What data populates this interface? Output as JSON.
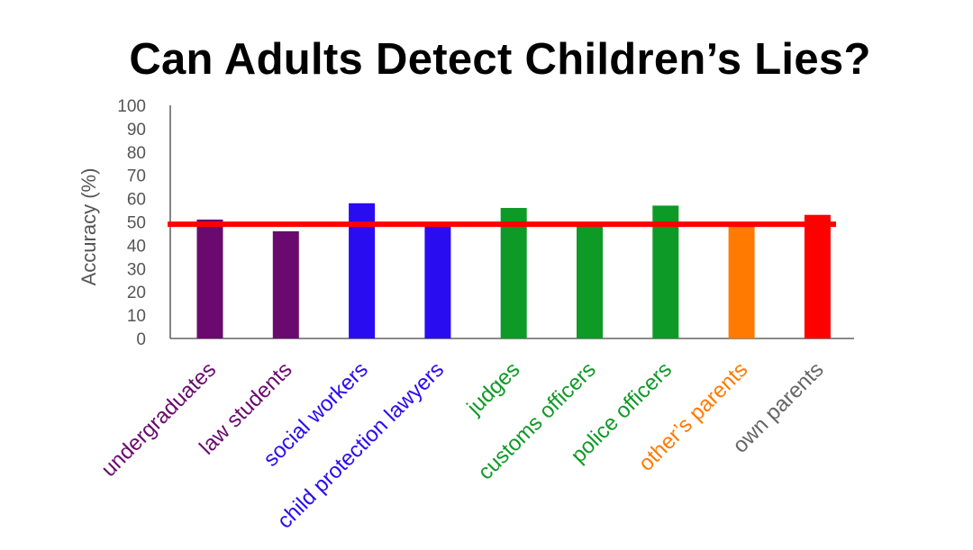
{
  "chart_data": {
    "type": "bar",
    "title": "Can Adults Detect Children’s Lies?",
    "xlabel": "",
    "ylabel": "Accuracy (%)",
    "ylim": [
      0,
      100
    ],
    "yticks": [
      "0",
      "10",
      "20",
      "30",
      "40",
      "50",
      "60",
      "70",
      "80",
      "90",
      "100"
    ],
    "categories": [
      "undergraduates",
      "law students",
      "social workers",
      "child protection lawyers",
      "judges",
      "customs officers",
      "police officers",
      "other’s parents",
      "own parents"
    ],
    "values": [
      51,
      46,
      58,
      48,
      56,
      48,
      57,
      48,
      53
    ],
    "bar_colors": [
      "#6a0a6e",
      "#6a0a6e",
      "#2a0cf0",
      "#2a0cf0",
      "#0e9a26",
      "#0e9a26",
      "#0e9a26",
      "#ff7a00",
      "#ff0000"
    ],
    "label_colors": [
      "#6a0a6e",
      "#6a0a6e",
      "#2a0cf0",
      "#2a0cf0",
      "#0e9a26",
      "#0e9a26",
      "#0e9a26",
      "#ff7a00",
      "#666666"
    ],
    "reference_line": {
      "value": 49,
      "color": "#ff0000"
    },
    "grid": false,
    "legend": "none"
  }
}
